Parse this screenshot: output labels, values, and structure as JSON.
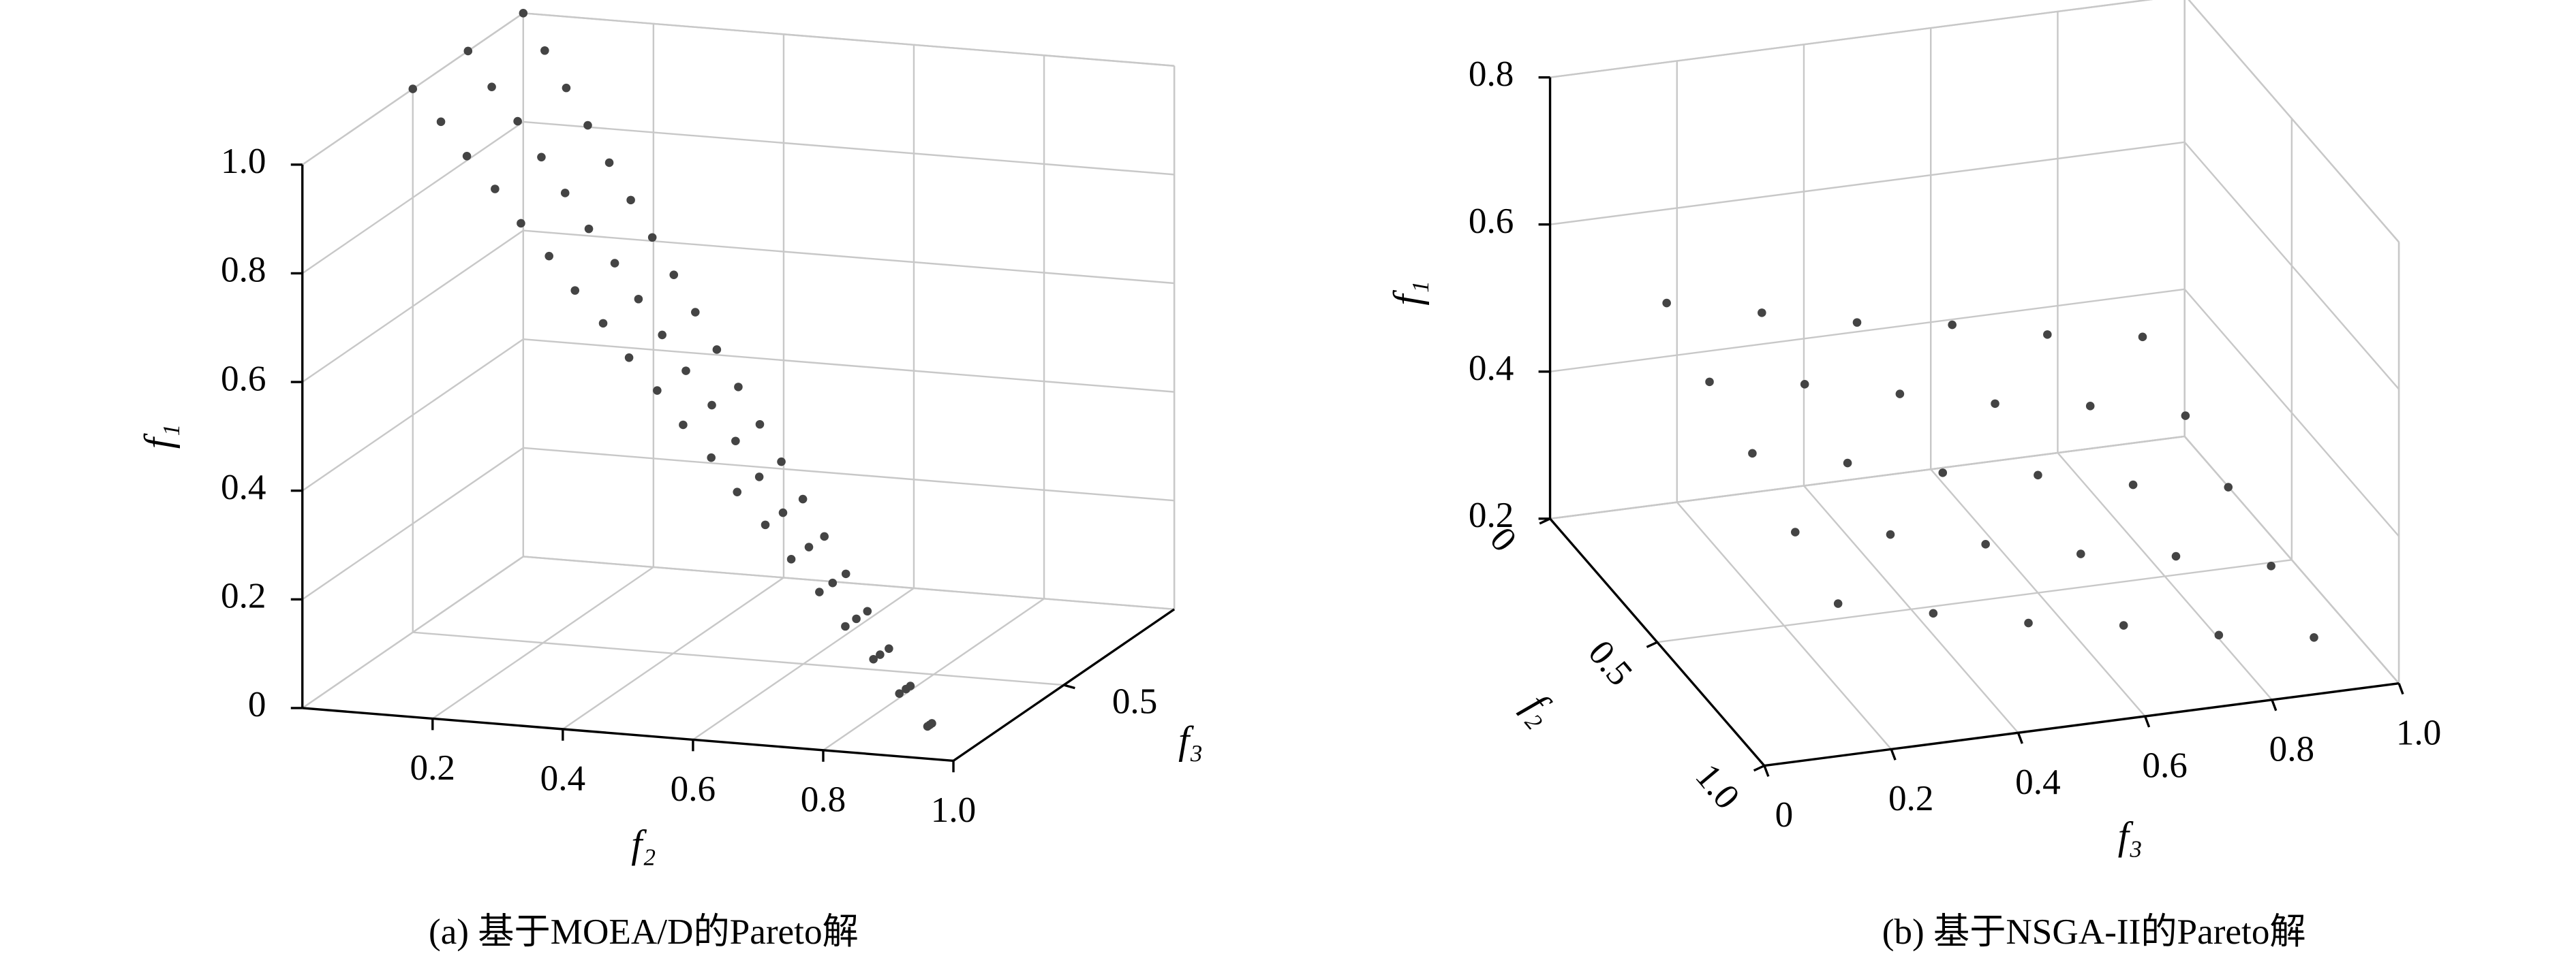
{
  "chart_data": [
    {
      "type": "scatter3d",
      "caption": "(a) 基于MOEA/D的Pareto解",
      "xlabel": "f₂",
      "ylabel": "f₃",
      "zlabel": "f₁",
      "xlim": [
        0,
        1
      ],
      "ylim": [
        0,
        1
      ],
      "zlim": [
        0,
        1
      ],
      "xticks": [
        0.2,
        0.4,
        0.6,
        0.8,
        {
          "value": 1,
          "label": "1.0"
        }
      ],
      "yticks": [
        0.5
      ],
      "zticks": [
        0,
        0.2,
        0.4,
        0.6,
        0.8,
        {
          "value": 1,
          "label": "1.0"
        }
      ],
      "grid": true,
      "series": [
        {
          "color": "#444444",
          "x": [
            0,
            0.05,
            0.1,
            0.15,
            0.2,
            0.25,
            0.3,
            0.35,
            0.4,
            0.45,
            0.5,
            0.55,
            0.6,
            0.65,
            0.7,
            0.75,
            0.8,
            0.85,
            0.9,
            0.95,
            0,
            0.05,
            0.1,
            0.15,
            0.2,
            0.25,
            0.3,
            0.35,
            0.4,
            0.45,
            0.5,
            0.55,
            0.6,
            0.65,
            0.7,
            0.75,
            0.8,
            0.85,
            0.9,
            0.95,
            0,
            0.05,
            0.1,
            0.15,
            0.2,
            0.25,
            0.3,
            0.35,
            0.4,
            0.45,
            0.5,
            0.55,
            0.6,
            0.65,
            0.7,
            0.75,
            0.8,
            0.85,
            0.9,
            0.95
          ],
          "y": [
            0.5,
            0.48,
            0.45,
            0.43,
            0.4,
            0.38,
            0.35,
            0.33,
            0.3,
            0.28,
            0.25,
            0.23,
            0.2,
            0.18,
            0.15,
            0.13,
            0.1,
            0.08,
            0.05,
            0.03,
            0.75,
            0.71,
            0.68,
            0.64,
            0.6,
            0.56,
            0.53,
            0.49,
            0.45,
            0.41,
            0.38,
            0.34,
            0.3,
            0.26,
            0.23,
            0.19,
            0.15,
            0.11,
            0.08,
            0.04,
            1,
            0.95,
            0.9,
            0.85,
            0.8,
            0.75,
            0.7,
            0.65,
            0.6,
            0.55,
            0.5,
            0.45,
            0.4,
            0.35,
            0.3,
            0.25,
            0.2,
            0.15,
            0.1,
            0.05
          ],
          "z": [
            1,
            0.95,
            0.9,
            0.85,
            0.8,
            0.75,
            0.7,
            0.65,
            0.6,
            0.55,
            0.5,
            0.45,
            0.4,
            0.35,
            0.3,
            0.25,
            0.2,
            0.15,
            0.1,
            0.05,
            1,
            0.95,
            0.9,
            0.85,
            0.8,
            0.75,
            0.7,
            0.65,
            0.6,
            0.55,
            0.5,
            0.45,
            0.4,
            0.35,
            0.3,
            0.25,
            0.2,
            0.15,
            0.1,
            0.05,
            1,
            0.95,
            0.9,
            0.85,
            0.8,
            0.75,
            0.7,
            0.65,
            0.6,
            0.55,
            0.5,
            0.45,
            0.4,
            0.35,
            0.3,
            0.25,
            0.2,
            0.15,
            0.1,
            0.05
          ]
        }
      ]
    },
    {
      "type": "scatter3d",
      "caption": "(b) 基于NSGA-II的Pareto解",
      "xlabel": "f₂",
      "ylabel": "f₃",
      "zlabel": "f₁",
      "xlim": [
        0,
        1
      ],
      "ylim": [
        0,
        1
      ],
      "zlim": [
        0.2,
        0.8
      ],
      "xticks": [
        0,
        0.5,
        {
          "value": 1,
          "label": "1.0"
        }
      ],
      "yticks": [
        0,
        0.2,
        0.4,
        0.6,
        0.8,
        {
          "value": 1,
          "label": "1.0"
        }
      ],
      "zticks": [
        0.2,
        0.4,
        0.6,
        0.8
      ],
      "grid": true,
      "series": [
        {
          "color": "#444444",
          "x": [
            0.1,
            0.1,
            0.1,
            0.1,
            0.1,
            0.1,
            0.3,
            0.3,
            0.3,
            0.3,
            0.3,
            0.3,
            0.5,
            0.5,
            0.5,
            0.5,
            0.5,
            0.5,
            0.7,
            0.7,
            0.7,
            0.7,
            0.7,
            0.7,
            0.9,
            0.9,
            0.9,
            0.9,
            0.9,
            0.9
          ],
          "y": [
            0.15,
            0.3,
            0.45,
            0.6,
            0.75,
            0.9,
            0.15,
            0.3,
            0.45,
            0.6,
            0.75,
            0.9,
            0.15,
            0.3,
            0.45,
            0.6,
            0.75,
            0.9,
            0.15,
            0.3,
            0.45,
            0.6,
            0.75,
            0.9,
            0.15,
            0.3,
            0.45,
            0.6,
            0.75,
            0.9
          ],
          "z": [
            0.51,
            0.48,
            0.45,
            0.43,
            0.4,
            0.38,
            0.47,
            0.45,
            0.42,
            0.39,
            0.37,
            0.34,
            0.44,
            0.41,
            0.38,
            0.36,
            0.33,
            0.31,
            0.4,
            0.38,
            0.35,
            0.32,
            0.3,
            0.27,
            0.37,
            0.34,
            0.31,
            0.29,
            0.26,
            0.24
          ]
        }
      ]
    }
  ]
}
